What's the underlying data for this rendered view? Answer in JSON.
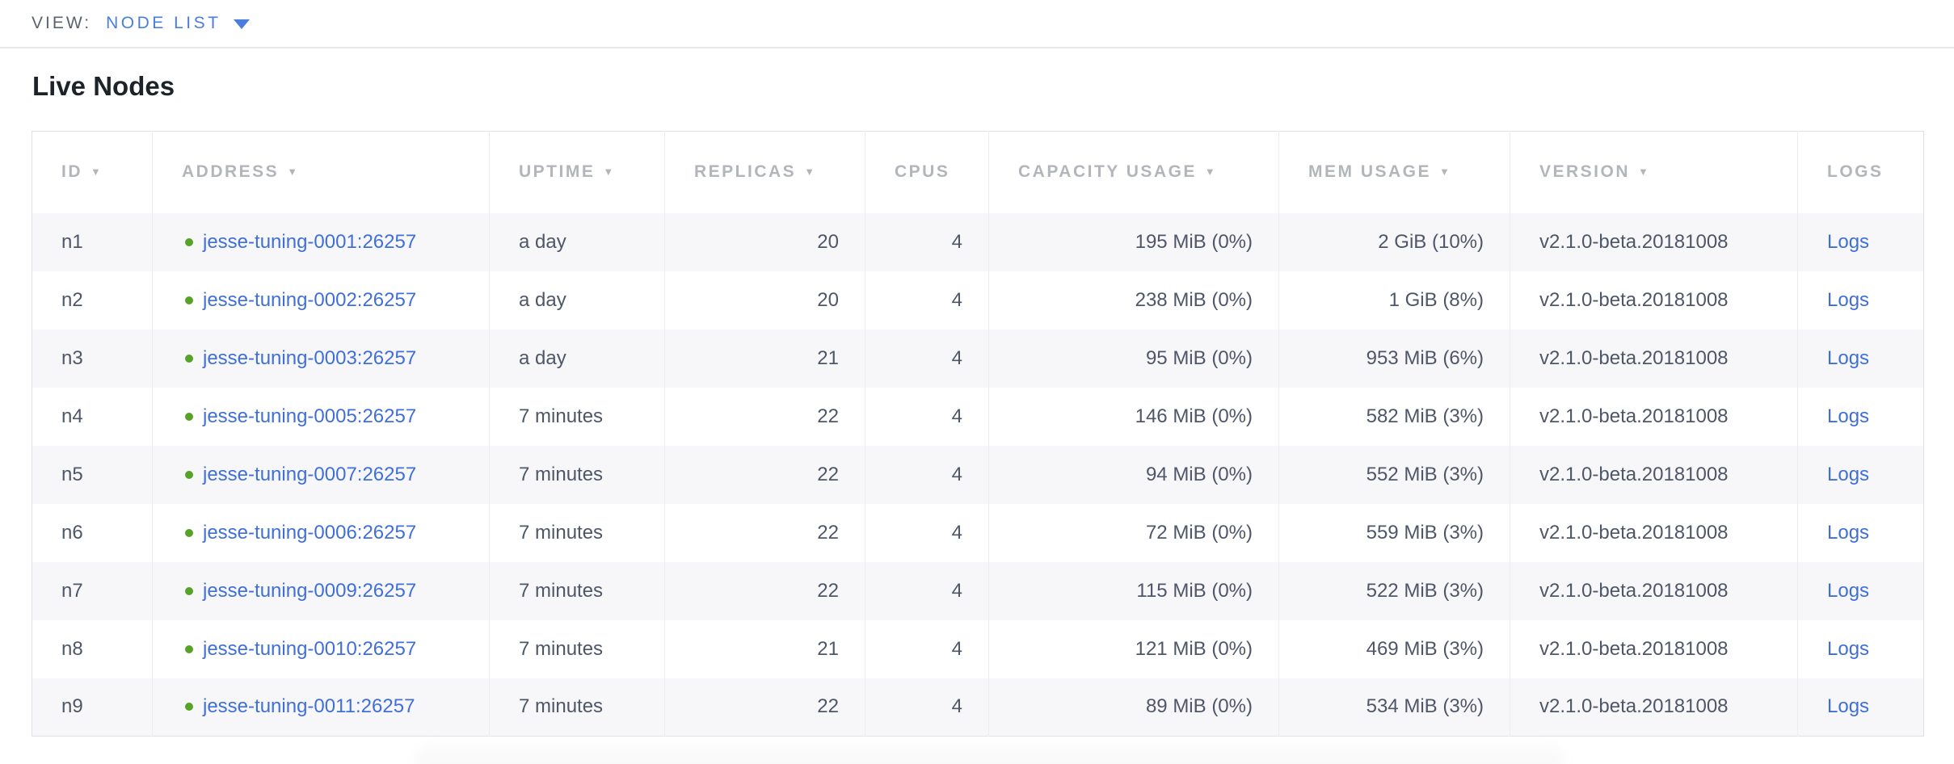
{
  "view_bar": {
    "label": "VIEW:",
    "selected": "NODE LIST"
  },
  "page": {
    "title": "Live Nodes"
  },
  "icons": {
    "sort_arrow": "▼",
    "dropdown_arrow": "▼",
    "live_dot": "●"
  },
  "colors": {
    "link_blue": "#3f6fd8",
    "nav_blue": "#4a7de2",
    "live_green": "#55a327",
    "header_gray": "#b2b6bb",
    "cell_text": "#4e5668",
    "title_text": "#1d2329",
    "view_label_gray": "#5b646e",
    "stripe_bg": "#f7f7f9",
    "table_border": "#dfe0e2",
    "column_divider": "#ededef",
    "topbar_divider": "#e9e9eb"
  },
  "table": {
    "columns": [
      {
        "key": "id",
        "label": "ID",
        "sortable": true,
        "align": "left"
      },
      {
        "key": "address",
        "label": "ADDRESS",
        "sortable": true,
        "align": "left"
      },
      {
        "key": "uptime",
        "label": "UPTIME",
        "sortable": true,
        "align": "left"
      },
      {
        "key": "replicas",
        "label": "REPLICAS",
        "sortable": true,
        "align": "right"
      },
      {
        "key": "cpus",
        "label": "CPUS",
        "sortable": false,
        "align": "right"
      },
      {
        "key": "capacity",
        "label": "CAPACITY USAGE",
        "sortable": true,
        "align": "right"
      },
      {
        "key": "mem",
        "label": "MEM USAGE",
        "sortable": true,
        "align": "right"
      },
      {
        "key": "version",
        "label": "VERSION",
        "sortable": true,
        "align": "left"
      },
      {
        "key": "logs",
        "label": "LOGS",
        "sortable": false,
        "align": "left"
      }
    ],
    "rows": [
      {
        "id": "n1",
        "address": "jesse-tuning-0001:26257",
        "status": "live",
        "uptime": "a day",
        "replicas": "20",
        "cpus": "4",
        "capacity": "195 MiB (0%)",
        "mem": "2 GiB (10%)",
        "version": "v2.1.0-beta.20181008",
        "logs": "Logs"
      },
      {
        "id": "n2",
        "address": "jesse-tuning-0002:26257",
        "status": "live",
        "uptime": "a day",
        "replicas": "20",
        "cpus": "4",
        "capacity": "238 MiB (0%)",
        "mem": "1 GiB (8%)",
        "version": "v2.1.0-beta.20181008",
        "logs": "Logs"
      },
      {
        "id": "n3",
        "address": "jesse-tuning-0003:26257",
        "status": "live",
        "uptime": "a day",
        "replicas": "21",
        "cpus": "4",
        "capacity": "95 MiB (0%)",
        "mem": "953 MiB (6%)",
        "version": "v2.1.0-beta.20181008",
        "logs": "Logs"
      },
      {
        "id": "n4",
        "address": "jesse-tuning-0005:26257",
        "status": "live",
        "uptime": "7 minutes",
        "replicas": "22",
        "cpus": "4",
        "capacity": "146 MiB (0%)",
        "mem": "582 MiB (3%)",
        "version": "v2.1.0-beta.20181008",
        "logs": "Logs"
      },
      {
        "id": "n5",
        "address": "jesse-tuning-0007:26257",
        "status": "live",
        "uptime": "7 minutes",
        "replicas": "22",
        "cpus": "4",
        "capacity": "94 MiB (0%)",
        "mem": "552 MiB (3%)",
        "version": "v2.1.0-beta.20181008",
        "logs": "Logs"
      },
      {
        "id": "n6",
        "address": "jesse-tuning-0006:26257",
        "status": "live",
        "uptime": "7 minutes",
        "replicas": "22",
        "cpus": "4",
        "capacity": "72 MiB (0%)",
        "mem": "559 MiB (3%)",
        "version": "v2.1.0-beta.20181008",
        "logs": "Logs"
      },
      {
        "id": "n7",
        "address": "jesse-tuning-0009:26257",
        "status": "live",
        "uptime": "7 minutes",
        "replicas": "22",
        "cpus": "4",
        "capacity": "115 MiB (0%)",
        "mem": "522 MiB (3%)",
        "version": "v2.1.0-beta.20181008",
        "logs": "Logs"
      },
      {
        "id": "n8",
        "address": "jesse-tuning-0010:26257",
        "status": "live",
        "uptime": "7 minutes",
        "replicas": "21",
        "cpus": "4",
        "capacity": "121 MiB (0%)",
        "mem": "469 MiB (3%)",
        "version": "v2.1.0-beta.20181008",
        "logs": "Logs"
      },
      {
        "id": "n9",
        "address": "jesse-tuning-0011:26257",
        "status": "live",
        "uptime": "7 minutes",
        "replicas": "22",
        "cpus": "4",
        "capacity": "89 MiB (0%)",
        "mem": "534 MiB (3%)",
        "version": "v2.1.0-beta.20181008",
        "logs": "Logs"
      }
    ]
  }
}
